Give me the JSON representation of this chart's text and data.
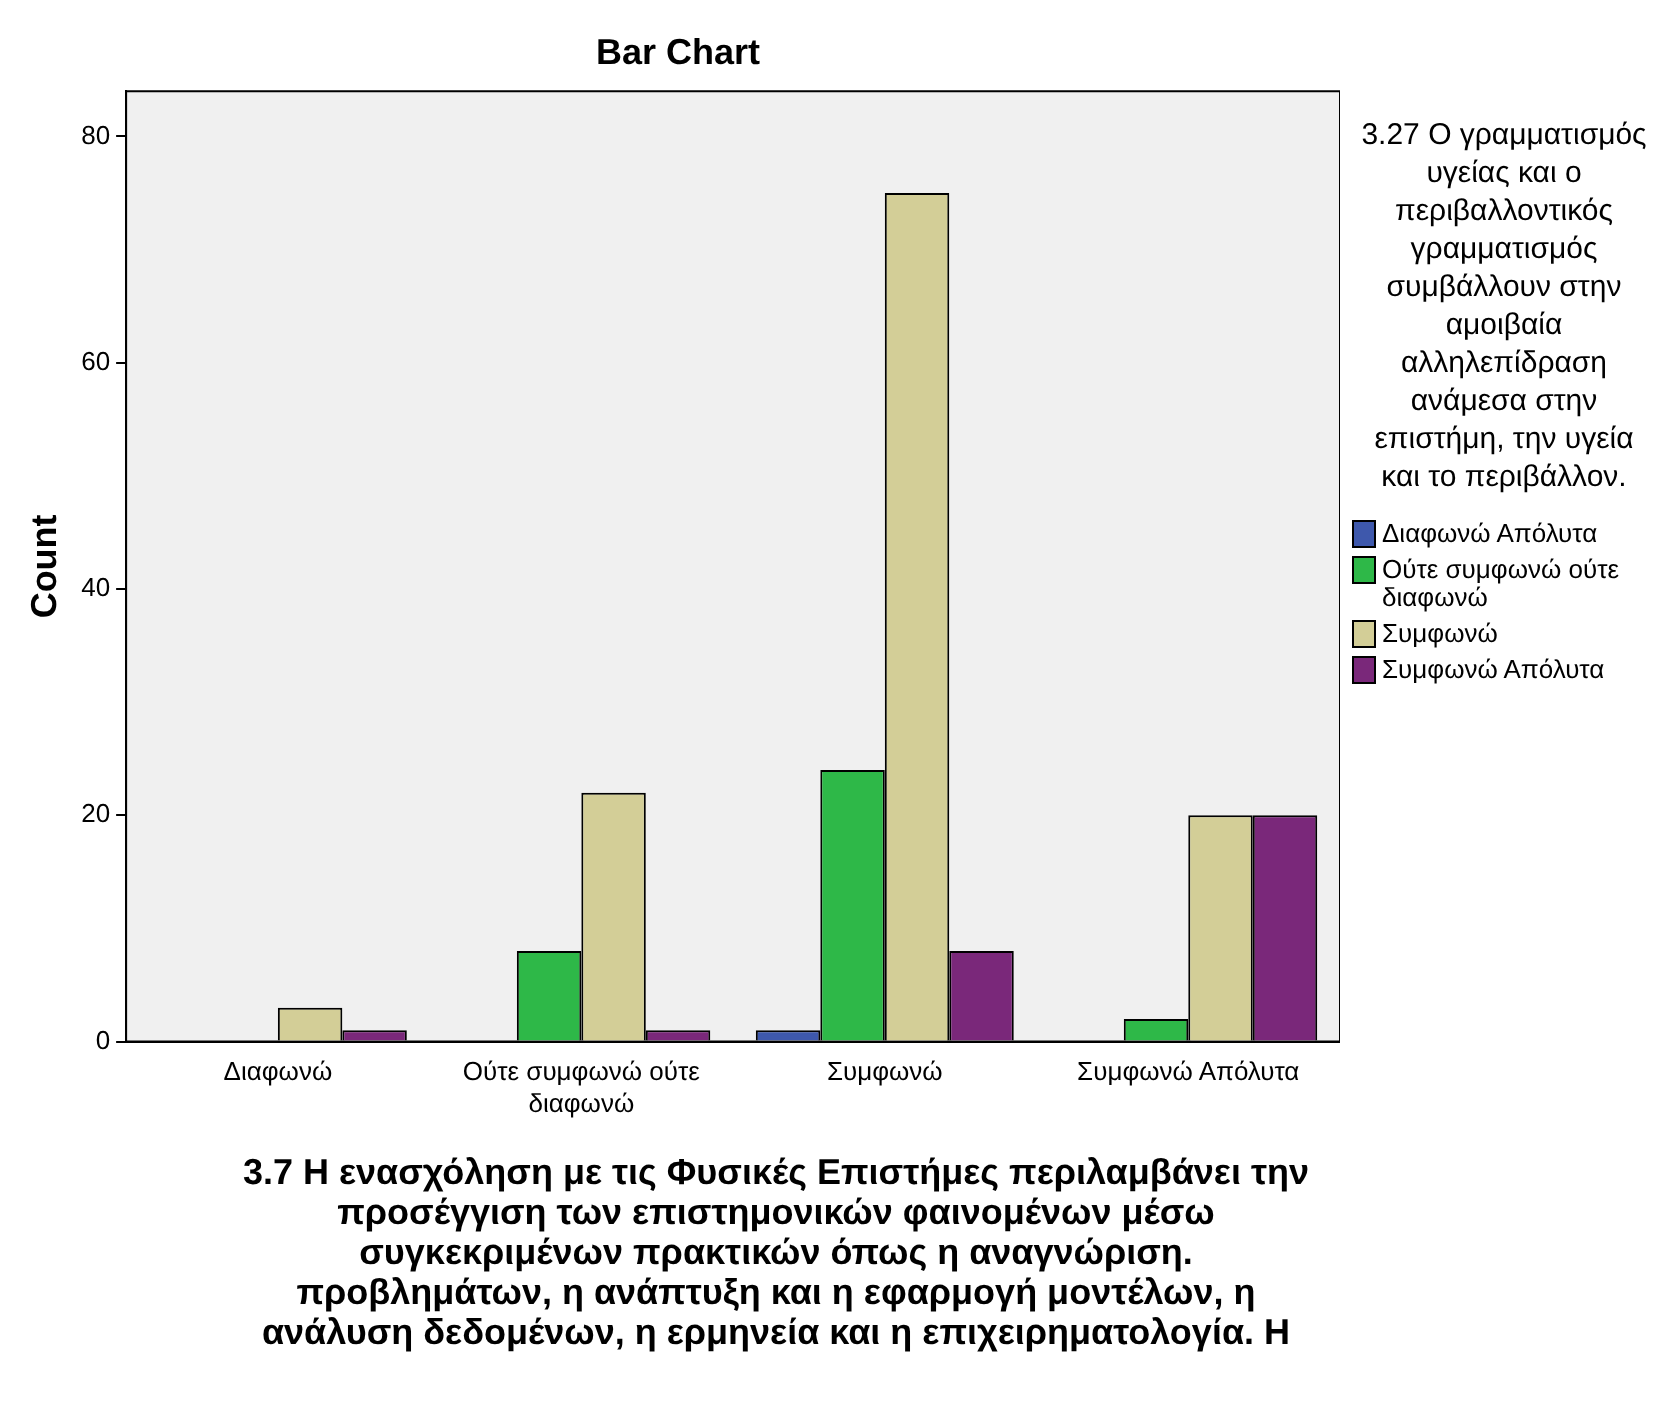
{
  "chart_data": {
    "type": "bar",
    "title": "Bar Chart",
    "xlabel": "3.7 Η ενασχόληση με τις Φυσικές Επιστήμες περιλαμβάνει την προσέγγιση των επιστημονικών φαινομένων μέσω συγκεκριμένων πρακτικών όπως η αναγνώριση. προβλημάτων, η ανάπτυξη και η εφαρμογή μοντέλων, η ανάλυση δεδομένων, η ερμηνεία και η επιχειρηματολογία. Η",
    "ylabel": "Count",
    "legend_title": "3.27 Ο γραμματισμός υγείας και ο περιβαλλοντικός γραμματισμός συμβάλλουν στην αμοιβαία αλληλεπίδραση ανάμεσα στην επιστήμη, την υγεία και το περιβάλλον.",
    "categories": [
      "Διαφωνώ",
      "Ούτε συμφωνώ ούτε διαφωνώ",
      "Συμφωνώ",
      "Συμφωνώ Απόλυτα"
    ],
    "series": [
      {
        "name": "Διαφωνώ Απόλυτα",
        "color": "#3e58ac",
        "values": [
          null,
          null,
          1,
          null
        ]
      },
      {
        "name": "Ούτε συμφωνώ ούτε διαφωνώ",
        "color": "#2eb848",
        "values": [
          null,
          8,
          24,
          2
        ]
      },
      {
        "name": "Συμφωνώ",
        "color": "#d3ce97",
        "values": [
          3,
          22,
          75,
          20
        ]
      },
      {
        "name": "Συμφωνώ Απόλυτα",
        "color": "#7a287a",
        "values": [
          1,
          1,
          8,
          20
        ]
      }
    ],
    "ylim": [
      0,
      84
    ],
    "yticks": [
      0,
      20,
      40,
      60,
      80
    ],
    "grid": false,
    "legend": "right"
  }
}
